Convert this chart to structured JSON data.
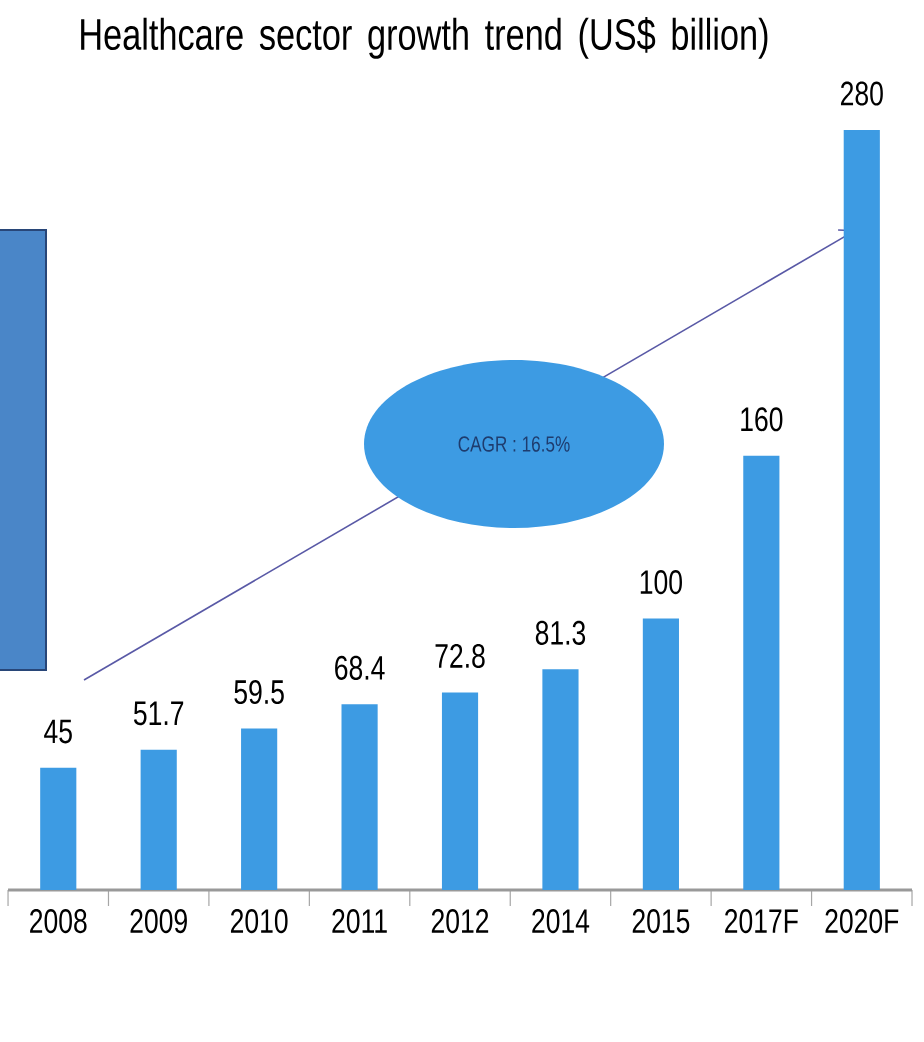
{
  "chart_data": {
    "type": "bar",
    "title": "Healthcare sector growth trend (US$ billion)",
    "categories": [
      "2008",
      "2009",
      "2010",
      "2011",
      "2012",
      "2014",
      "2015",
      "2017F",
      "2020F"
    ],
    "values": [
      45,
      51.7,
      59.5,
      68.4,
      72.8,
      81.3,
      100,
      160,
      280
    ],
    "color": "#3d9be3",
    "data_labels": true,
    "annotations": [
      "CAGR : 16.5%"
    ]
  }
}
